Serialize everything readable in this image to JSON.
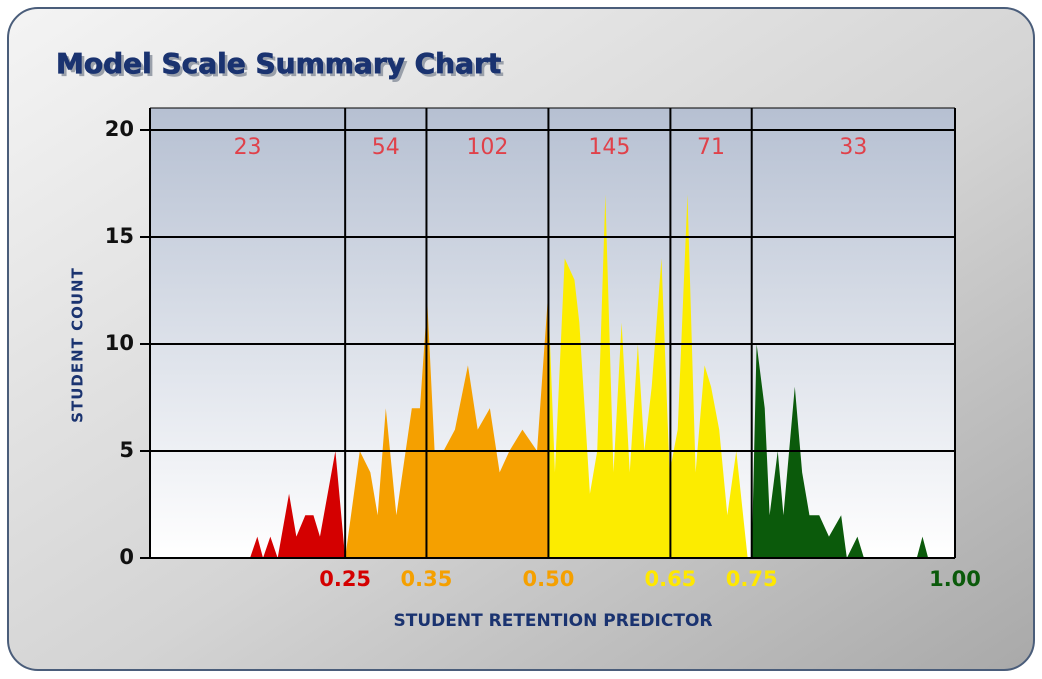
{
  "chart_data": {
    "type": "area",
    "title": "Model Scale Summary Chart",
    "x_label": "STUDENT RETENTION PREDICTOR",
    "y_label": "STUDENT COUNT",
    "xlim": [
      0.01,
      1.0
    ],
    "ylim": [
      0,
      20
    ],
    "yticks": [
      0,
      5,
      10,
      15,
      20
    ],
    "xticks": [
      0.25,
      0.35,
      {
        "value": 0.5,
        "label": "0.50"
      },
      0.65,
      0.75,
      {
        "value": 1,
        "label": "1.00"
      }
    ],
    "xtick_colors": [
      "#d40000",
      "#f5a000",
      "#f5a000",
      "#ffe800",
      "#ffe800",
      "#0b5a0b"
    ],
    "band_counts": [
      23,
      54,
      102,
      145,
      71,
      33
    ],
    "grid": true,
    "series": [
      {
        "color": "#d40000",
        "x": [
          0.133,
          0.142,
          0.149,
          0.158,
          0.167,
          0.181,
          0.19,
          0.201,
          0.211,
          0.219,
          0.238,
          0.25
        ],
        "values": [
          0,
          1,
          0,
          1,
          0,
          3,
          1,
          2,
          2,
          1,
          5,
          0
        ]
      },
      {
        "color": "#f5a000",
        "x": [
          0.25,
          0.268,
          0.281,
          0.29,
          0.3,
          0.313,
          0.332,
          0.342,
          0.351,
          0.36,
          0.371,
          0.385,
          0.401,
          0.413,
          0.428,
          0.44,
          0.452,
          0.468,
          0.486,
          0.499
        ],
        "values": [
          0,
          5,
          4,
          2,
          7,
          2,
          7,
          7,
          12,
          5,
          5,
          6,
          9,
          6,
          7,
          4,
          5,
          6,
          5,
          12
        ]
      },
      {
        "color": "#fcec00",
        "x": [
          0.5,
          0.508,
          0.52,
          0.532,
          0.538,
          0.551,
          0.56,
          0.57,
          0.58,
          0.59,
          0.6,
          0.61,
          0.618,
          0.627,
          0.639,
          0.649,
          0.659,
          0.671,
          0.681,
          0.692,
          0.7,
          0.71,
          0.72,
          0.731,
          0.745
        ],
        "values": [
          12,
          4,
          14,
          13,
          11,
          3,
          5,
          17,
          4,
          11,
          4,
          10,
          5,
          8,
          14,
          4,
          6,
          17,
          4,
          9,
          8,
          6,
          2,
          5,
          0
        ]
      },
      {
        "color": "#0b5a0b",
        "x": [
          0.75,
          0.756,
          0.766,
          0.772,
          0.782,
          0.789,
          0.803,
          0.812,
          0.821,
          0.833,
          0.845,
          0.86,
          0.867,
          0.88,
          0.888,
          0.953,
          0.96,
          0.967
        ],
        "values": [
          0,
          10,
          7,
          2,
          5,
          2,
          8,
          4,
          2,
          2,
          1,
          2,
          0,
          1,
          0,
          0,
          1,
          0
        ]
      }
    ]
  }
}
